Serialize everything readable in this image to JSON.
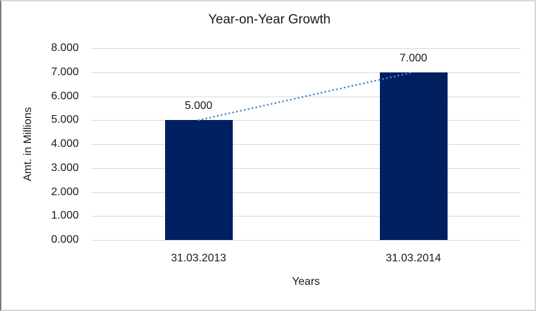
{
  "chart_data": {
    "type": "bar",
    "title": "Year-on-Year Growth",
    "xlabel": "Years",
    "ylabel": "Amt. in Millions",
    "categories": [
      "31.03.2013",
      "31.03.2014"
    ],
    "values": [
      5,
      7
    ],
    "data_labels": [
      "5.000",
      "7.000"
    ],
    "yticks": [
      "8.000",
      "7.000",
      "6.000",
      "5.000",
      "4.000",
      "3.000",
      "2.000",
      "1.000",
      "0.000"
    ],
    "ylim": [
      0,
      8
    ],
    "grid": true,
    "legend": "none",
    "bar_color": "#002060",
    "gridline_color": "#d9d9d9",
    "trendline": {
      "style": "dotted",
      "color": "#4e86c8"
    }
  }
}
